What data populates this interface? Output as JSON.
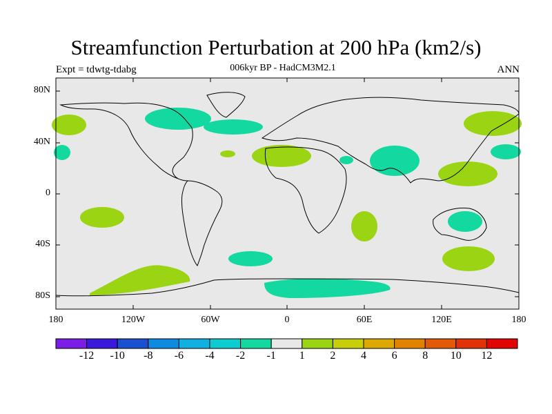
{
  "title": "Streamfunction Perturbation at 200 hPa (km2/s)",
  "subtitle": "006kyr BP - HadCM3M2.1",
  "experiment": "Expt = tdwtg-tdabg",
  "season": "ANN",
  "lat_labels": [
    "80N",
    "40N",
    "0",
    "40S",
    "80S"
  ],
  "lon_labels": [
    "180",
    "120W",
    "60W",
    "0",
    "60E",
    "120E",
    "180"
  ],
  "colorbar": {
    "labels": [
      "-12",
      "-10",
      "-8",
      "-6",
      "-4",
      "-2",
      "-1",
      "1",
      "2",
      "4",
      "6",
      "8",
      "10",
      "12"
    ],
    "colors": [
      "#7a1ee6",
      "#3a19dc",
      "#1a4fcf",
      "#0e8ae0",
      "#12b0e0",
      "#0ecbd0",
      "#13d8a0",
      "#e8e8e8",
      "#9ad412",
      "#c8cf0a",
      "#dca802",
      "#e08202",
      "#e05a07",
      "#e03208",
      "#e00404"
    ]
  },
  "colors": {
    "background": "#e8e8e8",
    "negative_fill": "#13d8a0",
    "positive_fill": "#9ad412"
  }
}
